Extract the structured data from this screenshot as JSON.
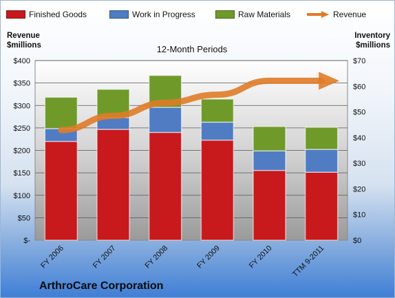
{
  "chart_data": {
    "type": "bar",
    "title": "12-Month Periods",
    "categories": [
      "FY 2006",
      "FY 2007",
      "FY 2008",
      "FY 2009",
      "FY 2010",
      "TTM 9-2011"
    ],
    "series": [
      {
        "name": "Finished Goods",
        "axis": "right",
        "stacked": true,
        "values": [
          38.5,
          43.2,
          42.0,
          39.0,
          27.2,
          26.5
        ],
        "color": "#c8191c"
      },
      {
        "name": "Work in Progress",
        "axis": "right",
        "stacked": true,
        "values": [
          5.0,
          4.6,
          9.8,
          7.0,
          7.6,
          8.9
        ],
        "color": "#4f7cc3"
      },
      {
        "name": "Raw Materials",
        "axis": "right",
        "stacked": true,
        "values": [
          12.2,
          11.0,
          12.4,
          9.0,
          9.5,
          8.6
        ],
        "color": "#6f9a2a"
      },
      {
        "name": "Revenue",
        "axis": "left",
        "type": "line",
        "values": [
          245,
          277,
          306,
          324,
          355,
          355
        ],
        "color": "#e07b27"
      }
    ],
    "left_axis": {
      "label": "Revenue $millions",
      "ylim": [
        0,
        400
      ],
      "ticks": [
        "$-",
        "$50",
        "$100",
        "$150",
        "$200",
        "$250",
        "$300",
        "$350",
        "$400"
      ]
    },
    "right_axis": {
      "label": "Inventory $millions",
      "ylim": [
        0,
        70
      ],
      "ticks": [
        "$0",
        "$10",
        "$20",
        "$30",
        "$40",
        "$50",
        "$60",
        "$70"
      ]
    },
    "grid": true,
    "legend": "top"
  },
  "labels": {
    "left_axis_title": [
      "Revenue",
      "$millions"
    ],
    "right_axis_title": [
      "Inventory",
      "$millions"
    ],
    "company": "ArthroCare Corporation"
  }
}
